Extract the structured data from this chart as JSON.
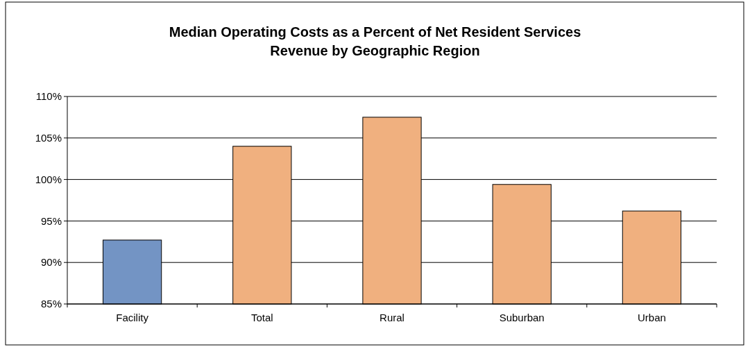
{
  "chart_data": {
    "type": "bar",
    "title": "Median Operating Costs as a Percent of Net Resident Services\nRevenue by Geographic Region",
    "categories": [
      "Facility",
      "Total",
      "Rural",
      "Suburban",
      "Urban"
    ],
    "values": [
      92.7,
      104,
      107.5,
      99.4,
      96.2
    ],
    "colors": [
      "#7394c4",
      "#f0b07f",
      "#f0b07f",
      "#f0b07f",
      "#f0b07f"
    ],
    "ylim": [
      85,
      110
    ],
    "yticks": [
      {
        "value": 85,
        "label": "85%"
      },
      {
        "value": 90,
        "label": "90%"
      },
      {
        "value": 95,
        "label": "95%"
      },
      {
        "value": 100,
        "label": "100%"
      },
      {
        "value": 105,
        "label": "105%"
      },
      {
        "value": 110,
        "label": "110%"
      }
    ],
    "grid": "y"
  }
}
